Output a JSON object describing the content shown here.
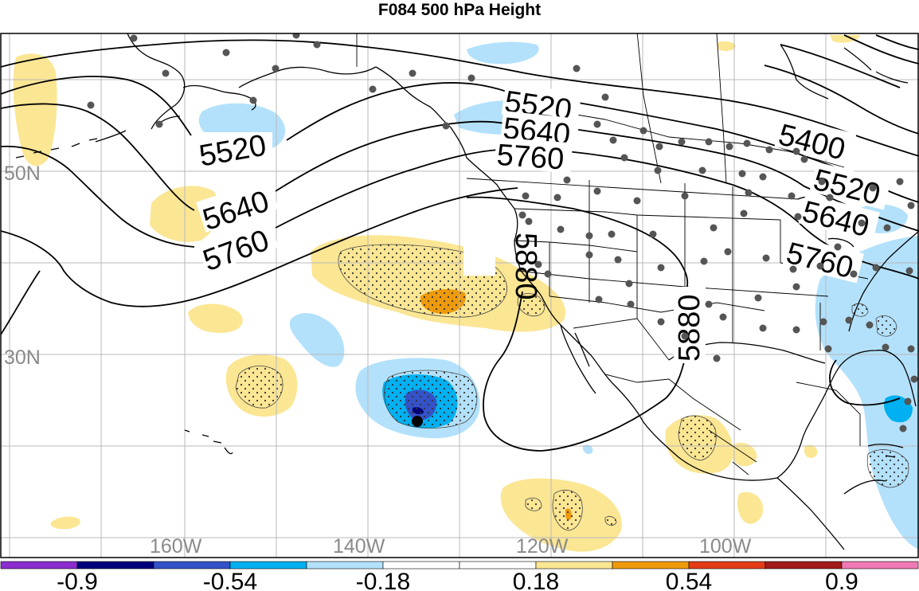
{
  "title": "F084 500 hPa Height",
  "map": {
    "latitude_labels": [
      "50N",
      "30N"
    ],
    "longitude_labels": [
      "160W",
      "140W",
      "120W",
      "100W"
    ],
    "contour_labels": [
      "5520",
      "5640",
      "5760",
      "5880",
      "5400"
    ],
    "shading_fill": "dotted stipple",
    "contour_color": "#000000",
    "coast_color": "#000000",
    "grid_color": "#b8b8b8",
    "station_marker_color": "#555555"
  },
  "colorbar": {
    "tick_labels": [
      "-0.9",
      "-0.54",
      "-0.18",
      "0.18",
      "0.54",
      "0.9"
    ],
    "colors": [
      "#8b2ccf",
      "#00007a",
      "#3452c8",
      "#00b0f0",
      "#b3e1fb",
      "#ffffff",
      "#ffffff",
      "#fbe694",
      "#ef9a0c",
      "#e33b17",
      "#a31a1a",
      "#f07ab4"
    ]
  }
}
